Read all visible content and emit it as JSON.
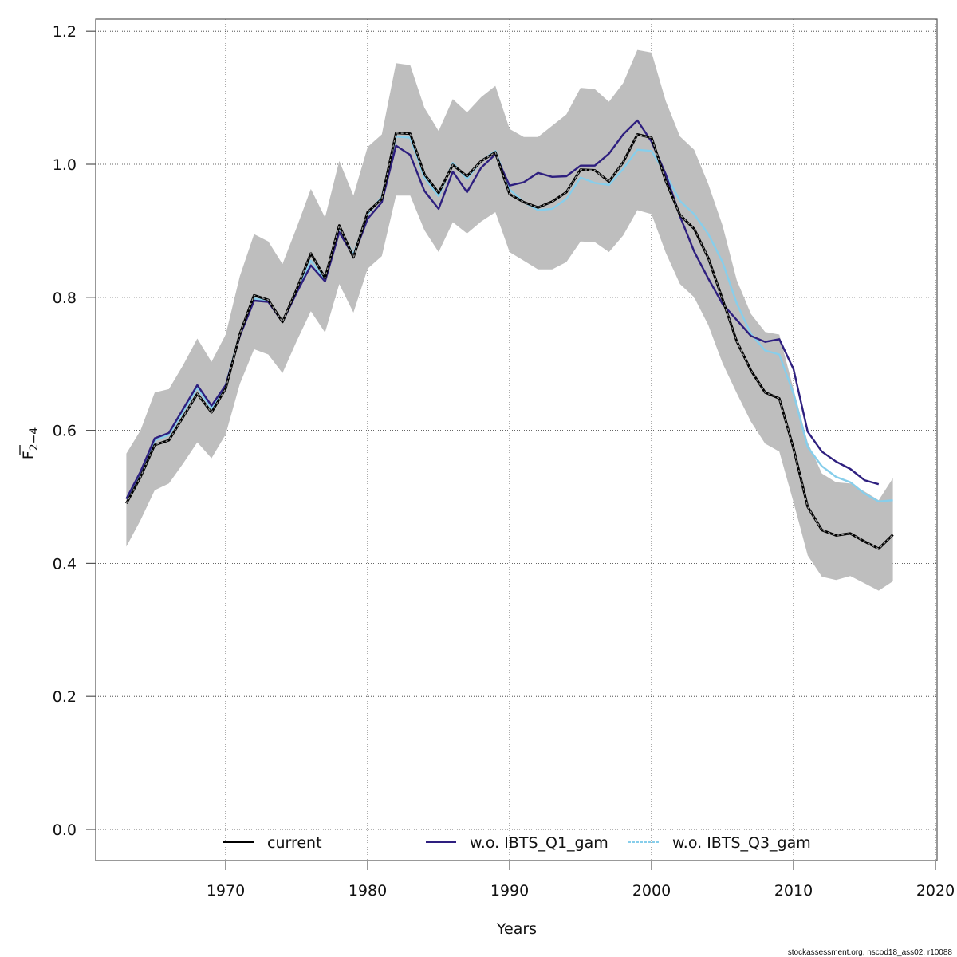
{
  "chart_data": {
    "type": "line",
    "title": "",
    "xlabel": "Years",
    "ylabel": "F̄ 2–4",
    "ylabel_main": "F",
    "ylabel_sub": "2−4",
    "xlim": [
      1961,
      2020
    ],
    "ylim": [
      -0.045,
      1.22
    ],
    "x_ticks": [
      1970,
      1980,
      1990,
      2000,
      2010,
      2020
    ],
    "x_tick_labels": [
      "1970",
      "1980",
      "1990",
      "2000",
      "2010",
      "2020"
    ],
    "y_ticks": [
      0.0,
      0.2,
      0.4,
      0.6,
      0.8,
      1.0,
      1.2
    ],
    "y_tick_labels": [
      "0.0",
      "0.2",
      "0.4",
      "0.6",
      "0.8",
      "1.0",
      "1.2"
    ],
    "grid": true,
    "legend_position": "bottom-inside",
    "x": [
      1963,
      1964,
      1965,
      1966,
      1967,
      1968,
      1969,
      1970,
      1971,
      1972,
      1973,
      1974,
      1975,
      1976,
      1977,
      1978,
      1979,
      1980,
      1981,
      1982,
      1983,
      1984,
      1985,
      1986,
      1987,
      1988,
      1989,
      1990,
      1991,
      1992,
      1993,
      1994,
      1995,
      1996,
      1997,
      1998,
      1999,
      2000,
      2001,
      2002,
      2003,
      2004,
      2005,
      2006,
      2007,
      2008,
      2009,
      2010,
      2011,
      2012,
      2013,
      2014,
      2015,
      2016,
      2017
    ],
    "confidence_band": {
      "name": "current 95% CI",
      "color": "#bebebe",
      "upper": [
        0.565,
        0.6,
        0.657,
        0.662,
        0.698,
        0.738,
        0.703,
        0.744,
        0.832,
        0.895,
        0.884,
        0.85,
        0.905,
        0.963,
        0.92,
        1.005,
        0.953,
        1.026,
        1.045,
        1.152,
        1.149,
        1.085,
        1.05,
        1.098,
        1.078,
        1.101,
        1.118,
        1.053,
        1.041,
        1.041,
        1.058,
        1.075,
        1.115,
        1.113,
        1.094,
        1.122,
        1.172,
        1.168,
        1.095,
        1.042,
        1.022,
        0.97,
        0.908,
        0.826,
        0.775,
        0.748,
        0.744,
        0.662,
        0.582,
        0.535,
        0.522,
        0.52,
        0.508,
        0.495,
        0.528
      ],
      "lower": [
        0.425,
        0.465,
        0.51,
        0.52,
        0.55,
        0.582,
        0.558,
        0.594,
        0.67,
        0.722,
        0.714,
        0.686,
        0.734,
        0.779,
        0.747,
        0.82,
        0.777,
        0.843,
        0.862,
        0.953,
        0.953,
        0.901,
        0.868,
        0.913,
        0.896,
        0.914,
        0.928,
        0.868,
        0.855,
        0.842,
        0.842,
        0.853,
        0.884,
        0.883,
        0.868,
        0.893,
        0.931,
        0.925,
        0.867,
        0.82,
        0.8,
        0.758,
        0.701,
        0.656,
        0.613,
        0.58,
        0.568,
        0.492,
        0.412,
        0.38,
        0.375,
        0.381,
        0.37,
        0.359,
        0.373
      ]
    },
    "series": [
      {
        "name": "current",
        "color": "#000000",
        "style": "solid-black-with-dashed-grey",
        "values": [
          0.49,
          0.53,
          0.578,
          0.585,
          0.62,
          0.655,
          0.627,
          0.663,
          0.745,
          0.803,
          0.796,
          0.763,
          0.812,
          0.866,
          0.829,
          0.908,
          0.86,
          0.928,
          0.948,
          1.047,
          1.046,
          0.985,
          0.957,
          0.999,
          0.982,
          1.005,
          1.018,
          0.955,
          0.943,
          0.935,
          0.944,
          0.958,
          0.992,
          0.991,
          0.974,
          1.003,
          1.045,
          1.04,
          0.975,
          0.924,
          0.903,
          0.859,
          0.797,
          0.734,
          0.69,
          0.657,
          0.648,
          0.573,
          0.485,
          0.45,
          0.442,
          0.445,
          0.433,
          0.422,
          0.443
        ]
      },
      {
        "name": "w.o. IBTS_Q1_gam",
        "color": "#2e1f7f",
        "style": "solid",
        "values": [
          0.497,
          0.538,
          0.588,
          0.596,
          0.632,
          0.668,
          0.637,
          0.668,
          0.742,
          0.795,
          0.793,
          0.763,
          0.807,
          0.848,
          0.824,
          0.898,
          0.862,
          0.918,
          0.943,
          1.028,
          1.014,
          0.96,
          0.933,
          0.989,
          0.958,
          0.995,
          1.015,
          0.968,
          0.973,
          0.987,
          0.981,
          0.982,
          0.998,
          0.998,
          1.016,
          1.045,
          1.066,
          1.034,
          0.985,
          0.922,
          0.869,
          0.828,
          0.79,
          0.766,
          0.742,
          0.733,
          0.737,
          0.692,
          0.598,
          0.568,
          0.553,
          0.542,
          0.525,
          0.519,
          null
        ]
      },
      {
        "name": "w.o. IBTS_Q3_gam",
        "color": "#87ceeb",
        "style": "solid",
        "values": [
          0.497,
          0.535,
          0.585,
          0.593,
          0.628,
          0.664,
          0.633,
          0.668,
          0.745,
          0.798,
          0.795,
          0.763,
          0.808,
          0.855,
          0.826,
          0.905,
          0.864,
          0.925,
          0.951,
          1.042,
          1.04,
          0.98,
          0.952,
          1.002,
          0.978,
          1.005,
          1.02,
          0.962,
          0.943,
          0.931,
          0.933,
          0.948,
          0.98,
          0.972,
          0.969,
          0.993,
          1.022,
          1.02,
          0.985,
          0.945,
          0.925,
          0.895,
          0.853,
          0.791,
          0.745,
          0.72,
          0.714,
          0.655,
          0.575,
          0.546,
          0.53,
          0.522,
          0.505,
          0.493,
          0.495
        ]
      }
    ],
    "legend": [
      {
        "label": "current",
        "color": "#000000"
      },
      {
        "label": "w.o. IBTS_Q1_gam",
        "color": "#2e1f7f"
      },
      {
        "label": "w.o. IBTS_Q3_gam",
        "color": "#87ceeb"
      }
    ],
    "footnote": "stockassessment.org, nscod18_ass02, r10088"
  }
}
